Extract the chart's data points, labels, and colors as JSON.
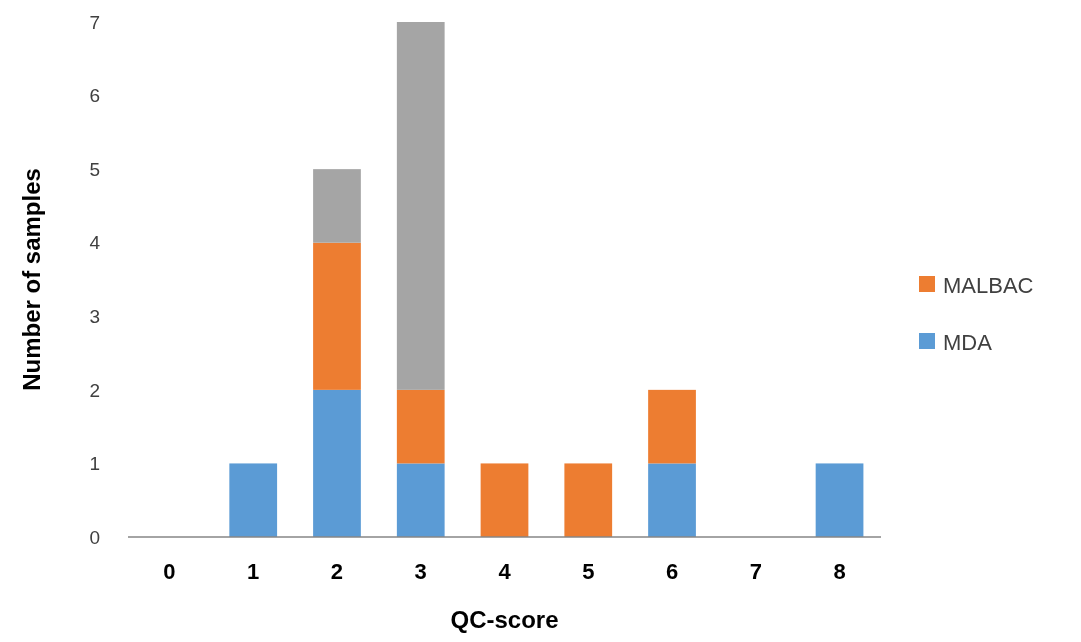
{
  "chart_data": {
    "type": "bar",
    "stacked": true,
    "xlabel": "QC-score",
    "ylabel": "Number of samples",
    "categories": [
      "0",
      "1",
      "2",
      "3",
      "4",
      "5",
      "6",
      "7",
      "8"
    ],
    "series": [
      {
        "name": "MDA",
        "color": "#5b9bd5",
        "values": [
          0,
          1,
          2,
          1,
          0,
          0,
          1,
          0,
          1
        ]
      },
      {
        "name": "MALBAC",
        "color": "#ed7d31",
        "values": [
          0,
          0,
          2,
          1,
          1,
          1,
          1,
          0,
          0
        ]
      },
      {
        "color": "#a5a5a5",
        "values": [
          0,
          0,
          1,
          5,
          0,
          0,
          0,
          0,
          0
        ]
      }
    ],
    "ylim": [
      0,
      7
    ],
    "yticks": [
      0,
      1,
      2,
      3,
      4,
      5,
      6,
      7
    ],
    "legend": "right"
  }
}
